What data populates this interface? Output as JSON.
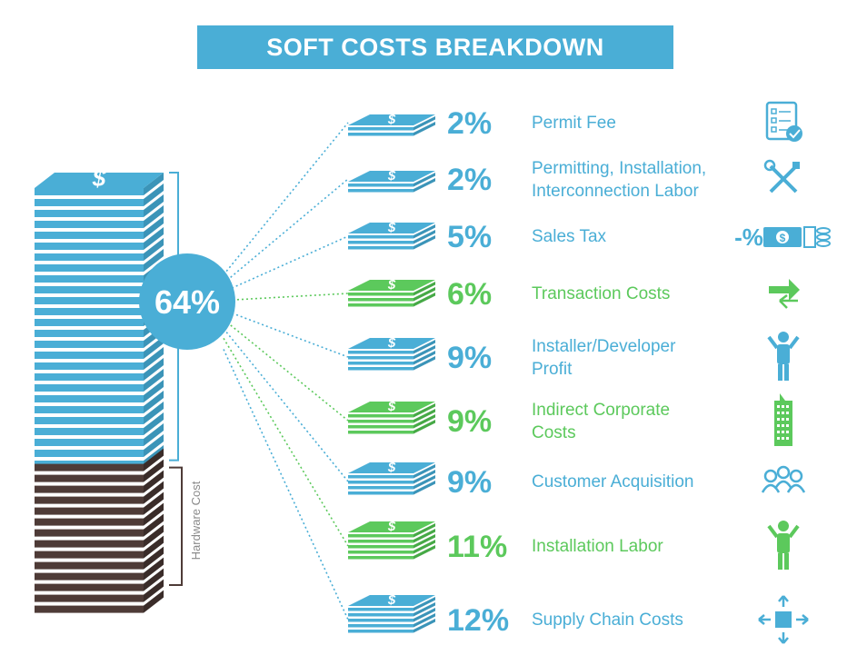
{
  "title": "SOFT COSTS BREAKDOWN",
  "colors": {
    "blue": "#4aaed6",
    "green": "#5cc95c",
    "brown": "#4e3b37",
    "title_bg": "#4aaed6",
    "white": "#ffffff"
  },
  "chart_data": {
    "type": "bar",
    "title": "SOFT COSTS BREAKDOWN",
    "stack": {
      "soft_cost_share_label": "64%",
      "soft_cost_share": 64,
      "hardware_cost_share": 36,
      "hardware_label": "Hardware Cost"
    },
    "categories": [
      "Permit Fee",
      "Permitting, Installation, Interconnection Labor",
      "Sales Tax",
      "Transaction Costs",
      "Installer/Developer Profit",
      "Indirect Corporate Costs",
      "Customer Acquisition",
      "Installation Labor",
      "Supply Chain Costs"
    ],
    "values": [
      2,
      2,
      5,
      6,
      9,
      9,
      9,
      11,
      12
    ],
    "items": [
      {
        "pct": "2%",
        "value": 2,
        "lines": [
          "Permit Fee"
        ],
        "color": "blue",
        "icon": "checklist-icon",
        "stack_sheets": 2
      },
      {
        "pct": "2%",
        "value": 2,
        "lines": [
          "Permitting, Installation,",
          "Interconnection Labor"
        ],
        "color": "blue",
        "icon": "tools-icon",
        "stack_sheets": 2
      },
      {
        "pct": "5%",
        "value": 5,
        "lines": [
          "Sales Tax"
        ],
        "color": "blue",
        "icon": "tax-money-icon",
        "icon_text": "-%",
        "stack_sheets": 3
      },
      {
        "pct": "6%",
        "value": 6,
        "lines": [
          "Transaction Costs"
        ],
        "color": "green",
        "icon": "transfer-arrows-icon",
        "stack_sheets": 3
      },
      {
        "pct": "9%",
        "value": 9,
        "lines": [
          "Installer/Developer",
          "Profit"
        ],
        "color": "blue",
        "icon": "developer-person-icon",
        "stack_sheets": 4
      },
      {
        "pct": "9%",
        "value": 9,
        "lines": [
          "Indirect Corporate",
          "Costs"
        ],
        "color": "green",
        "icon": "office-building-icon",
        "stack_sheets": 4
      },
      {
        "pct": "9%",
        "value": 9,
        "lines": [
          "Customer Acquisition"
        ],
        "color": "blue",
        "icon": "customers-group-icon",
        "stack_sheets": 4
      },
      {
        "pct": "11%",
        "value": 11,
        "lines": [
          "Installation Labor"
        ],
        "color": "green",
        "icon": "installer-person-icon",
        "stack_sheets": 5
      },
      {
        "pct": "12%",
        "value": 12,
        "lines": [
          "Supply Chain Costs"
        ],
        "color": "blue",
        "icon": "supply-chain-box-icon",
        "stack_sheets": 5
      }
    ],
    "dollar_symbol": "$"
  }
}
